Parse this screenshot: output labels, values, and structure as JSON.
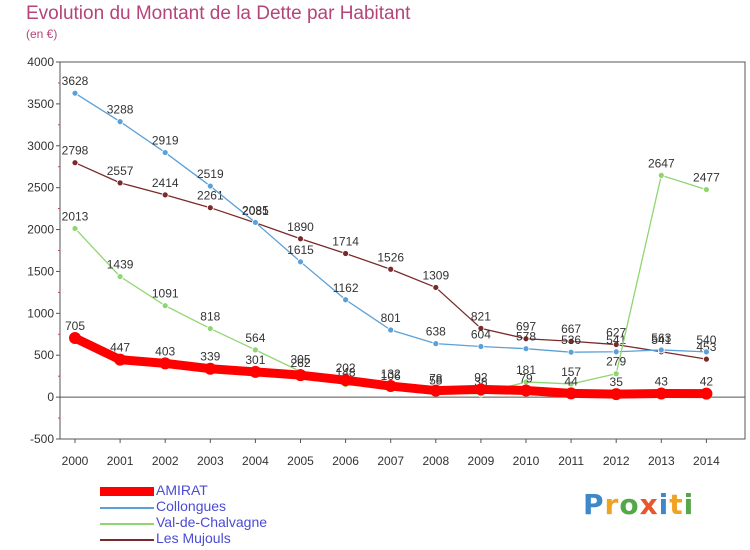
{
  "header": {
    "title": "Evolution du Montant de la Dette par Habitant",
    "unit": "(en €)"
  },
  "chart_data": {
    "type": "line",
    "title": "Evolution du Montant de la Dette par Habitant",
    "ylabel": "(en €)",
    "xlabel": "",
    "x": [
      "2000",
      "2001",
      "2002",
      "2003",
      "2004",
      "2005",
      "2006",
      "2007",
      "2008",
      "2009",
      "2010",
      "2011",
      "2012",
      "2013",
      "2014"
    ],
    "ylim": [
      -500,
      4000
    ],
    "yticks": [
      -500,
      0,
      500,
      1000,
      1500,
      2000,
      2500,
      3000,
      3500,
      4000
    ],
    "grid": false,
    "legend_position": "bottom-left",
    "series": [
      {
        "name": "Les Mujouls",
        "color": "#7a2a2a",
        "values": [
          2798,
          2557,
          2414,
          2261,
          2081,
          1890,
          1714,
          1526,
          1309,
          821,
          697,
          667,
          627,
          541,
          453
        ]
      },
      {
        "name": "Collongues",
        "color": "#5ba0d8",
        "values": [
          3628,
          3288,
          2919,
          2519,
          2085,
          1615,
          1162,
          801,
          638,
          604,
          578,
          536,
          541,
          563,
          540
        ]
      },
      {
        "name": "Val-de-Chalvagne",
        "color": "#8fd672",
        "values": [
          2013,
          1439,
          1091,
          818,
          564,
          305,
          148,
          106,
          58,
          38,
          181,
          157,
          279,
          2647,
          2477
        ]
      },
      {
        "name": "AMIRAT",
        "color": "#ff0000",
        "values": [
          705,
          447,
          403,
          339,
          301,
          262,
          202,
          132,
          78,
          92,
          79,
          44,
          35,
          43,
          42
        ]
      }
    ]
  },
  "legend": [
    {
      "name": "AMIRAT",
      "color": "#ff0000"
    },
    {
      "name": "Collongues",
      "color": "#5ba0d8"
    },
    {
      "name": "Val-de-Chalvagne",
      "color": "#8fd672"
    },
    {
      "name": "Les Mujouls",
      "color": "#7a2a2a"
    }
  ],
  "logo": {
    "text": "Proxiti"
  }
}
